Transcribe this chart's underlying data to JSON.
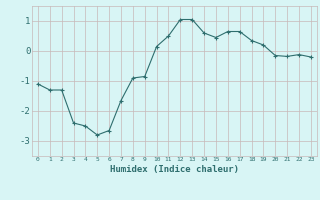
{
  "x": [
    0,
    1,
    2,
    3,
    4,
    5,
    6,
    7,
    8,
    9,
    10,
    11,
    12,
    13,
    14,
    15,
    16,
    17,
    18,
    19,
    20,
    21,
    22,
    23
  ],
  "y": [
    -1.1,
    -1.3,
    -1.3,
    -2.4,
    -2.5,
    -2.8,
    -2.65,
    -1.65,
    -0.9,
    -0.85,
    0.15,
    0.5,
    1.05,
    1.05,
    0.6,
    0.45,
    0.65,
    0.65,
    0.35,
    0.2,
    -0.15,
    -0.18,
    -0.12,
    -0.2
  ],
  "line_color": "#2e6e6e",
  "marker": "+",
  "bg_color": "#d8f5f5",
  "grid_color": "#c8b8b8",
  "xlabel": "Humidex (Indice chaleur)",
  "xlim": [
    -0.5,
    23.5
  ],
  "ylim": [
    -3.5,
    1.5
  ],
  "yticks": [
    -3,
    -2,
    -1,
    0,
    1
  ],
  "xticks": [
    0,
    1,
    2,
    3,
    4,
    5,
    6,
    7,
    8,
    9,
    10,
    11,
    12,
    13,
    14,
    15,
    16,
    17,
    18,
    19,
    20,
    21,
    22,
    23
  ],
  "xtick_labels": [
    "0",
    "1",
    "2",
    "3",
    "4",
    "5",
    "6",
    "7",
    "8",
    "9",
    "10",
    "11",
    "12",
    "13",
    "14",
    "15",
    "16",
    "17",
    "18",
    "19",
    "20",
    "21",
    "22",
    "23"
  ]
}
